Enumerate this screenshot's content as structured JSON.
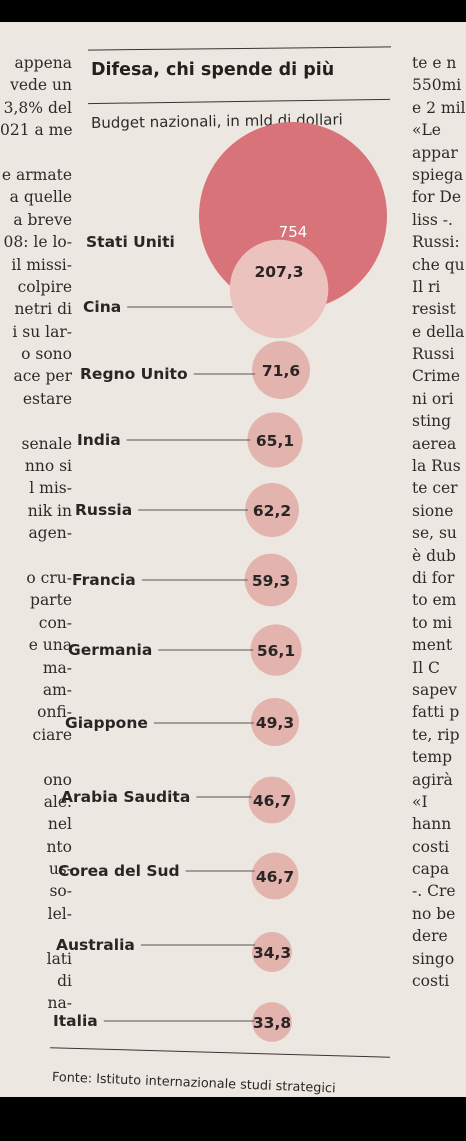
{
  "chart_data": {
    "type": "bubble",
    "title": "Difesa, chi spende di più",
    "subtitle": "Budget nazionali, in mld di dollari",
    "source": "Fonte: Istituto internazionale studi strategici",
    "categories": [
      "Stati Uniti",
      "Cina",
      "Regno Unito",
      "India",
      "Russia",
      "Francia",
      "Germania",
      "Giappone",
      "Arabia Saudita",
      "Corea del Sud",
      "Australia",
      "Italia"
    ],
    "values": [
      754,
      207.3,
      71.6,
      65.1,
      62.2,
      59.3,
      56.1,
      49.3,
      46.7,
      46.7,
      34.3,
      33.8
    ],
    "value_labels": [
      "754",
      "207,3",
      "71,6",
      "65,1",
      "62,2",
      "59,3",
      "56,1",
      "49,3",
      "46,7",
      "46,7",
      "34,3",
      "33,8"
    ],
    "colors": {
      "large_bubble": "#d9737a",
      "medium_bubble": "#ebc2bd",
      "small_bubble": "#e3b3ae"
    }
  },
  "article": {
    "left_column": [
      "appena",
      "vede un",
      "3,8% del",
      "021 a me-",
      "",
      "e armate",
      "a quelle",
      "a breve",
      "08: le lo-",
      "il missi-",
      "colpire",
      "netri di",
      "i su lar-",
      "o sono",
      "ace per",
      "estare",
      "",
      "senale",
      "nno si",
      "l mis-",
      "nik in",
      "agen-",
      "",
      "o cru-",
      "parte",
      "con-",
      "e una",
      "ma-",
      "am-",
      "onfi-",
      "ciare",
      "",
      "ono",
      "ale.",
      "nel",
      "nto",
      "us-",
      "so-",
      "lel-",
      "",
      "lati",
      "di",
      "na-"
    ],
    "right_column": [
      "te e n",
      "550mi",
      "e 2 mil",
      "«Le",
      "appar",
      "spiega",
      "for De",
      "liss -.",
      "Russi:",
      "che qu",
      "Il ri",
      "resist",
      "e della",
      "Russi",
      "Crime",
      "ni ori",
      "sting",
      "aerea",
      "la Rus",
      "te cer",
      "sione",
      "se, su",
      "è dub",
      "di for",
      "to em",
      "to mi",
      "ment",
      "Il C",
      "sapev",
      "fatti p",
      "te, rip",
      "temp",
      "agirà",
      "«I",
      "hann",
      "costi",
      "capa",
      "-. Cre",
      "no be",
      "dere",
      "singo",
      "costi"
    ]
  }
}
